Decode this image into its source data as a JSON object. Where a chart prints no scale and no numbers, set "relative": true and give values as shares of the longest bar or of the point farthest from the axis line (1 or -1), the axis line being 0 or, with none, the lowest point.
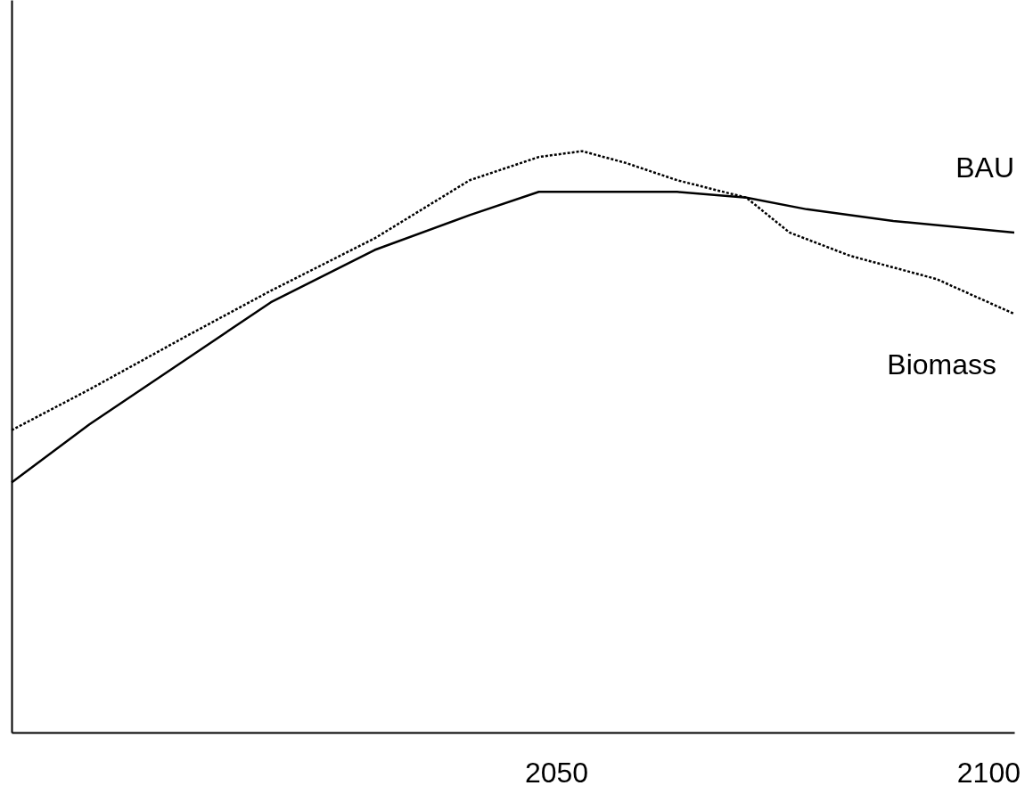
{
  "chart_data": {
    "type": "line",
    "relative": true,
    "xlim": [
      1987,
      2103
    ],
    "xticks": [
      2050,
      2100
    ],
    "grid": false,
    "marker": "none",
    "series": [
      {
        "name": "BAU",
        "color": "#000000",
        "line_style": "solid",
        "x": [
          1987,
          1996,
          2007,
          2017,
          2029,
          2040,
          2048,
          2056,
          2064,
          2072,
          2079,
          2089,
          2103
        ],
        "values": [
          0.43,
          0.53,
          0.64,
          0.74,
          0.83,
          0.89,
          0.93,
          0.93,
          0.93,
          0.92,
          0.9,
          0.88,
          0.86
        ]
      },
      {
        "name": "Biomass",
        "color": "#000000",
        "line_style": "dotted",
        "x": [
          1987,
          1996,
          2007,
          2017,
          2029,
          2040,
          2048,
          2053,
          2058,
          2064,
          2072,
          2077,
          2084,
          2094,
          2103
        ],
        "values": [
          0.52,
          0.59,
          0.68,
          0.76,
          0.85,
          0.95,
          0.99,
          1.0,
          0.98,
          0.95,
          0.92,
          0.86,
          0.82,
          0.78,
          0.72
        ]
      }
    ]
  }
}
